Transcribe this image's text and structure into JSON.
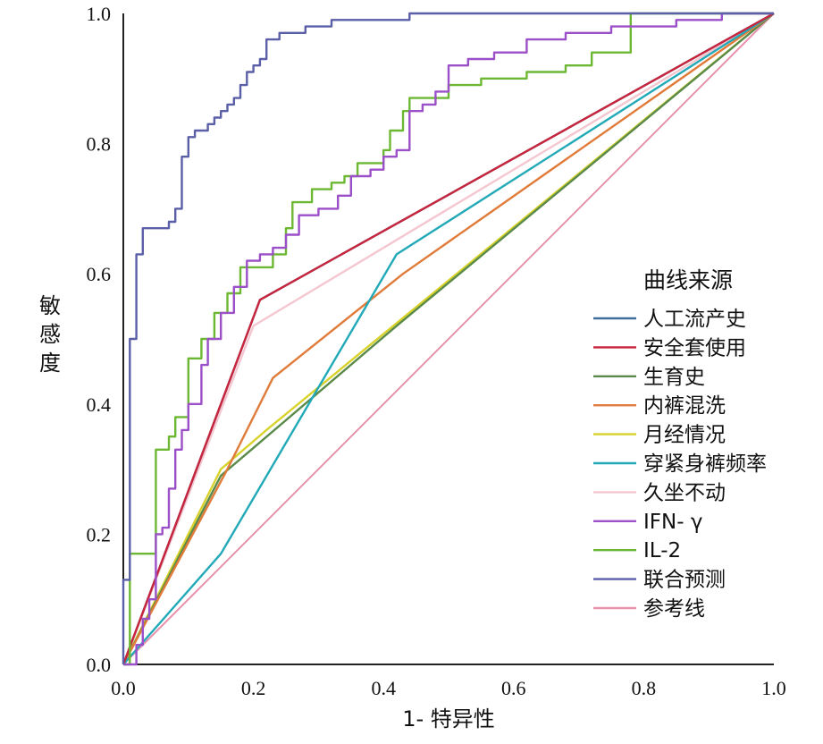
{
  "chart_data": {
    "type": "line",
    "xlabel": "1- 特异性",
    "ylabel": "敏感度",
    "xlim": [
      0,
      1
    ],
    "ylim": [
      0,
      1
    ],
    "x_ticks": [
      "0.0",
      "0.2",
      "0.4",
      "0.6",
      "0.8",
      "1.0"
    ],
    "y_ticks": [
      "0.0",
      "0.2",
      "0.4",
      "0.6",
      "0.8",
      "1.0"
    ],
    "grid": false,
    "legend": {
      "title": "曲线来源",
      "position": "right"
    },
    "series": [
      {
        "name": "人工流产史",
        "color": "#3f6e9e",
        "step": false,
        "points": [
          [
            0,
            0
          ],
          [
            0.21,
            0.56
          ],
          [
            1,
            1
          ]
        ]
      },
      {
        "name": "安全套使用",
        "color": "#c8253d",
        "step": false,
        "points": [
          [
            0,
            0
          ],
          [
            0.21,
            0.56
          ],
          [
            1,
            1
          ]
        ]
      },
      {
        "name": "生育史",
        "color": "#5a8a4a",
        "step": false,
        "points": [
          [
            0,
            0
          ],
          [
            0.15,
            0.29
          ],
          [
            0.42,
            0.52
          ],
          [
            1,
            1
          ]
        ]
      },
      {
        "name": "内裤混洗",
        "color": "#e07b39",
        "step": false,
        "points": [
          [
            0,
            0
          ],
          [
            0.16,
            0.3
          ],
          [
            0.23,
            0.44
          ],
          [
            0.43,
            0.6
          ],
          [
            1,
            1
          ]
        ]
      },
      {
        "name": "月经情况",
        "color": "#d8d22a",
        "step": false,
        "points": [
          [
            0,
            0
          ],
          [
            0.15,
            0.3
          ],
          [
            0.22,
            0.36
          ],
          [
            1,
            1
          ]
        ]
      },
      {
        "name": "穿紧身裤频率",
        "color": "#22a9b8",
        "step": false,
        "points": [
          [
            0,
            0
          ],
          [
            0.15,
            0.17
          ],
          [
            0.42,
            0.63
          ],
          [
            1,
            1
          ]
        ]
      },
      {
        "name": "久坐不动",
        "color": "#f3c6d0",
        "step": false,
        "points": [
          [
            0,
            0
          ],
          [
            0.2,
            0.52
          ],
          [
            1,
            1
          ]
        ]
      },
      {
        "name": "IFN- γ",
        "color": "#9b4fc8",
        "step": true,
        "points": [
          [
            0,
            0
          ],
          [
            0.02,
            0.03
          ],
          [
            0.03,
            0.07
          ],
          [
            0.04,
            0.1
          ],
          [
            0.05,
            0.2
          ],
          [
            0.06,
            0.21
          ],
          [
            0.07,
            0.27
          ],
          [
            0.08,
            0.33
          ],
          [
            0.09,
            0.36
          ],
          [
            0.1,
            0.4
          ],
          [
            0.12,
            0.46
          ],
          [
            0.13,
            0.5
          ],
          [
            0.15,
            0.54
          ],
          [
            0.17,
            0.58
          ],
          [
            0.19,
            0.62
          ],
          [
            0.21,
            0.63
          ],
          [
            0.23,
            0.64
          ],
          [
            0.25,
            0.66
          ],
          [
            0.27,
            0.69
          ],
          [
            0.3,
            0.7
          ],
          [
            0.33,
            0.72
          ],
          [
            0.35,
            0.75
          ],
          [
            0.38,
            0.76
          ],
          [
            0.4,
            0.78
          ],
          [
            0.42,
            0.79
          ],
          [
            0.44,
            0.85
          ],
          [
            0.46,
            0.86
          ],
          [
            0.48,
            0.88
          ],
          [
            0.5,
            0.92
          ],
          [
            0.53,
            0.93
          ],
          [
            0.57,
            0.94
          ],
          [
            0.62,
            0.96
          ],
          [
            0.68,
            0.97
          ],
          [
            0.75,
            0.98
          ],
          [
            0.85,
            0.99
          ],
          [
            0.92,
            1
          ],
          [
            1,
            1
          ]
        ]
      },
      {
        "name": "IL-2",
        "color": "#6cb833",
        "step": true,
        "points": [
          [
            0,
            0
          ],
          [
            0.01,
            0.17
          ],
          [
            0.04,
            0.17
          ],
          [
            0.05,
            0.33
          ],
          [
            0.07,
            0.35
          ],
          [
            0.08,
            0.38
          ],
          [
            0.1,
            0.43
          ],
          [
            0.1,
            0.47
          ],
          [
            0.12,
            0.5
          ],
          [
            0.14,
            0.54
          ],
          [
            0.16,
            0.57
          ],
          [
            0.18,
            0.61
          ],
          [
            0.2,
            0.61
          ],
          [
            0.23,
            0.63
          ],
          [
            0.25,
            0.67
          ],
          [
            0.26,
            0.71
          ],
          [
            0.28,
            0.71
          ],
          [
            0.29,
            0.73
          ],
          [
            0.32,
            0.74
          ],
          [
            0.34,
            0.75
          ],
          [
            0.36,
            0.77
          ],
          [
            0.4,
            0.79
          ],
          [
            0.41,
            0.82
          ],
          [
            0.43,
            0.85
          ],
          [
            0.44,
            0.87
          ],
          [
            0.48,
            0.87
          ],
          [
            0.5,
            0.89
          ],
          [
            0.55,
            0.9
          ],
          [
            0.62,
            0.91
          ],
          [
            0.68,
            0.92
          ],
          [
            0.72,
            0.94
          ],
          [
            0.78,
            0.95
          ],
          [
            0.78,
            1
          ],
          [
            1,
            1
          ]
        ]
      },
      {
        "name": "联合预测",
        "color": "#5b5fa8",
        "step": true,
        "points": [
          [
            0,
            0
          ],
          [
            0,
            0.13
          ],
          [
            0.01,
            0.13
          ],
          [
            0.01,
            0.5
          ],
          [
            0.02,
            0.5
          ],
          [
            0.02,
            0.63
          ],
          [
            0.03,
            0.63
          ],
          [
            0.03,
            0.67
          ],
          [
            0.06,
            0.67
          ],
          [
            0.07,
            0.68
          ],
          [
            0.08,
            0.7
          ],
          [
            0.09,
            0.74
          ],
          [
            0.09,
            0.78
          ],
          [
            0.1,
            0.81
          ],
          [
            0.11,
            0.82
          ],
          [
            0.13,
            0.83
          ],
          [
            0.14,
            0.84
          ],
          [
            0.15,
            0.85
          ],
          [
            0.16,
            0.86
          ],
          [
            0.17,
            0.87
          ],
          [
            0.18,
            0.89
          ],
          [
            0.19,
            0.91
          ],
          [
            0.2,
            0.92
          ],
          [
            0.21,
            0.93
          ],
          [
            0.22,
            0.96
          ],
          [
            0.24,
            0.97
          ],
          [
            0.28,
            0.98
          ],
          [
            0.32,
            0.99
          ],
          [
            0.44,
            1
          ],
          [
            1,
            1
          ]
        ]
      },
      {
        "name": "参考线",
        "color": "#e891ab",
        "step": false,
        "points": [
          [
            0,
            0
          ],
          [
            1,
            1
          ]
        ]
      }
    ]
  }
}
